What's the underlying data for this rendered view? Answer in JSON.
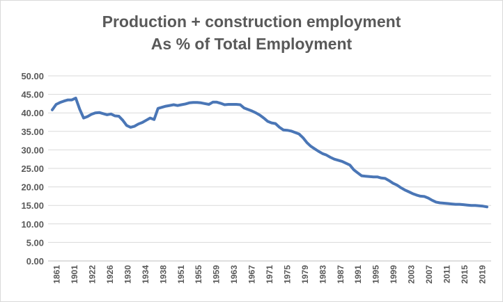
{
  "chart_data": {
    "type": "line",
    "title": "Production + construction employment",
    "subtitle": "As % of Total Employment",
    "xlabel": "",
    "ylabel": "",
    "ylim": [
      0,
      50
    ],
    "y_ticks": [
      "0.00",
      "5.00",
      "10.00",
      "15.00",
      "20.00",
      "25.00",
      "30.00",
      "35.00",
      "40.00",
      "45.00",
      "50.00"
    ],
    "x_tick_labels": [
      "1861",
      "1901",
      "1922",
      "1926",
      "1930",
      "1934",
      "1938",
      "1951",
      "1955",
      "1959",
      "1963",
      "1967",
      "1971",
      "1975",
      "1979",
      "1983",
      "1987",
      "1991",
      "1995",
      "1999",
      "2003",
      "2007",
      "2011",
      "2015",
      "2019"
    ],
    "grid": true,
    "legend": "none",
    "line_color": "#4a76b6",
    "series": [
      {
        "values": [
          40.8,
          42.3,
          42.8,
          43.2,
          43.5,
          43.5,
          44.0,
          41.0,
          38.6,
          39.0,
          39.6,
          40.0,
          40.1,
          39.8,
          39.5,
          39.7,
          39.2,
          39.1,
          38.0,
          36.6,
          36.1,
          36.4,
          37.0,
          37.4,
          38.0,
          38.6,
          38.2,
          41.2,
          41.5,
          41.8,
          42.0,
          42.2,
          42.0,
          42.2,
          42.4,
          42.7,
          42.8,
          42.8,
          42.7,
          42.5,
          42.3,
          42.9,
          42.9,
          42.6,
          42.2,
          42.3,
          42.3,
          42.3,
          42.2,
          41.3,
          40.9,
          40.5,
          40.0,
          39.4,
          38.6,
          37.7,
          37.3,
          37.1,
          36.1,
          35.4,
          35.3,
          35.1,
          34.7,
          34.3,
          33.3,
          32.0,
          31.0,
          30.3,
          29.6,
          29.0,
          28.6,
          28.0,
          27.5,
          27.2,
          26.9,
          26.4,
          25.9,
          24.6,
          23.8,
          23.0,
          22.9,
          22.8,
          22.7,
          22.7,
          22.4,
          22.3,
          21.7,
          21.0,
          20.5,
          19.8,
          19.2,
          18.7,
          18.2,
          17.8,
          17.5,
          17.4,
          17.0,
          16.4,
          15.9,
          15.7,
          15.6,
          15.5,
          15.4,
          15.3,
          15.3,
          15.2,
          15.1,
          15.0,
          15.0,
          14.9,
          14.8,
          14.6
        ]
      }
    ]
  }
}
